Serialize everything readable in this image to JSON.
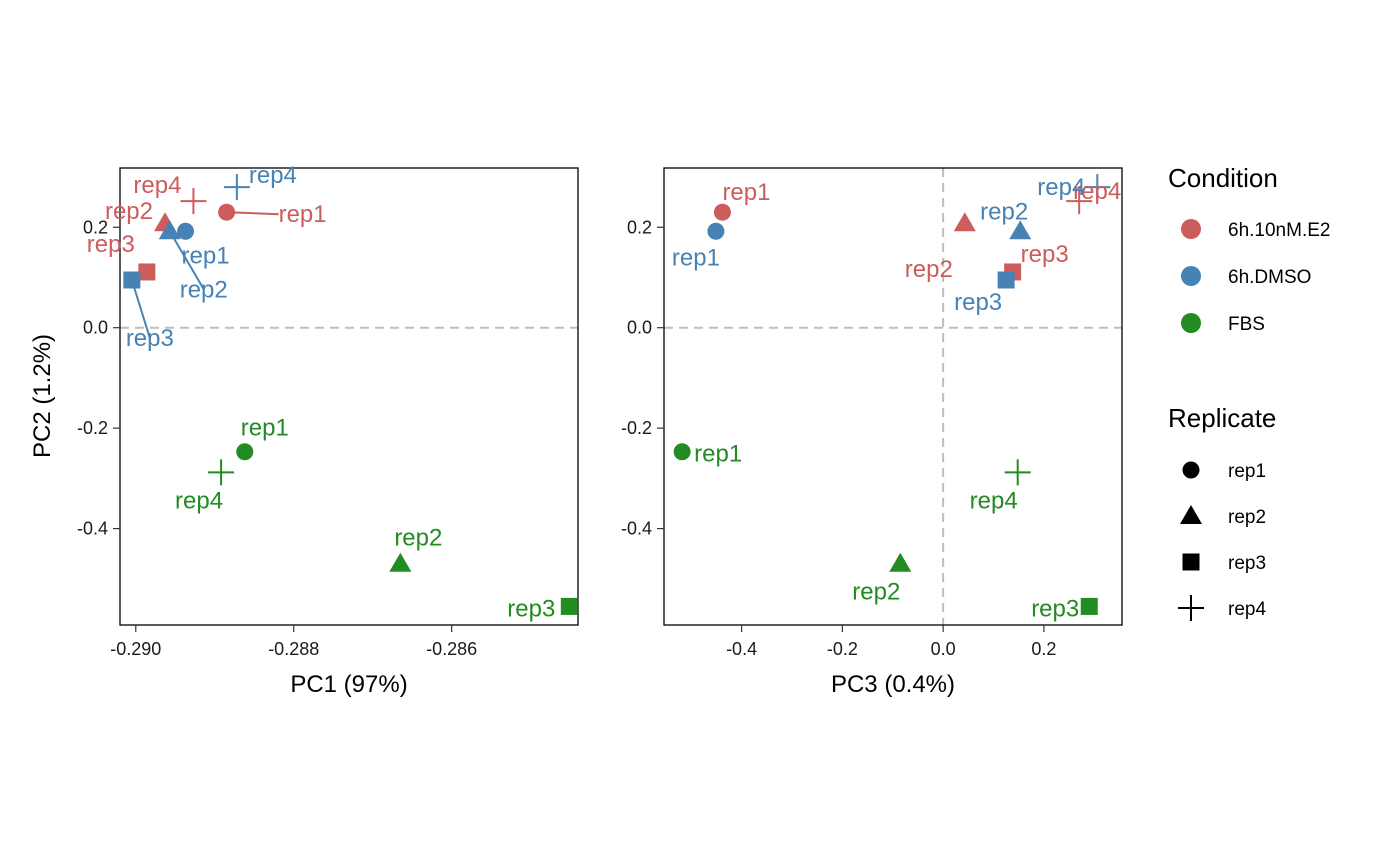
{
  "colors": {
    "6h.10nM.E2": "#CD5C5C",
    "6h.DMSO": "#4682B4",
    "FBS": "#228B22",
    "refline": "#BEBEBE",
    "legend_marker": "#000000"
  },
  "legend": {
    "condition": {
      "title": "Condition",
      "items": [
        {
          "label": "6h.10nM.E2",
          "color": "#CD5C5C"
        },
        {
          "label": "6h.DMSO",
          "color": "#4682B4"
        },
        {
          "label": "FBS",
          "color": "#228B22"
        }
      ]
    },
    "replicate": {
      "title": "Replicate",
      "items": [
        {
          "label": "rep1",
          "shape": "circle"
        },
        {
          "label": "rep2",
          "shape": "triangle"
        },
        {
          "label": "rep3",
          "shape": "square"
        },
        {
          "label": "rep4",
          "shape": "plus"
        }
      ]
    }
  },
  "chart_data": [
    {
      "type": "scatter",
      "xlabel": "PC1 (97%)",
      "ylabel": "PC2 (1.2%)",
      "xlim": [
        -0.2902,
        -0.2844
      ],
      "ylim": [
        -0.592,
        0.318
      ],
      "xticks": [
        -0.29,
        -0.288,
        -0.286
      ],
      "xtick_labels": [
        "-0.290",
        "-0.288",
        "-0.286"
      ],
      "yticks": [
        -0.4,
        -0.2,
        0.0,
        0.2
      ],
      "ytick_labels": [
        "-0.4",
        "-0.2",
        "0.0",
        "0.2"
      ],
      "reference_lines": {
        "h": [
          0
        ]
      },
      "grid": false,
      "points": [
        {
          "condition": "6h.10nM.E2",
          "replicate": "rep1",
          "label": "rep1",
          "x": -0.28885,
          "y": 0.23
        },
        {
          "condition": "6h.10nM.E2",
          "replicate": "rep2",
          "label": "rep2",
          "x": -0.28963,
          "y": 0.208
        },
        {
          "condition": "6h.10nM.E2",
          "replicate": "rep3",
          "label": "rep3",
          "x": -0.28986,
          "y": 0.111
        },
        {
          "condition": "6h.10nM.E2",
          "replicate": "rep4",
          "label": "rep4",
          "x": -0.28927,
          "y": 0.252
        },
        {
          "condition": "6h.DMSO",
          "replicate": "rep1",
          "label": "rep1",
          "x": -0.28937,
          "y": 0.192
        },
        {
          "condition": "6h.DMSO",
          "replicate": "rep2",
          "label": "rep2",
          "x": -0.28957,
          "y": 0.192
        },
        {
          "condition": "6h.DMSO",
          "replicate": "rep3",
          "label": "rep3",
          "x": -0.29005,
          "y": 0.095
        },
        {
          "condition": "6h.DMSO",
          "replicate": "rep4",
          "label": "rep4",
          "x": -0.28872,
          "y": 0.28
        },
        {
          "condition": "FBS",
          "replicate": "rep1",
          "label": "rep1",
          "x": -0.28862,
          "y": -0.247
        },
        {
          "condition": "FBS",
          "replicate": "rep2",
          "label": "rep2",
          "x": -0.28665,
          "y": -0.47
        },
        {
          "condition": "FBS",
          "replicate": "rep3",
          "label": "rep3",
          "x": -0.28451,
          "y": -0.555
        },
        {
          "condition": "FBS",
          "replicate": "rep4",
          "label": "rep4",
          "x": -0.28892,
          "y": -0.288
        }
      ]
    },
    {
      "type": "scatter",
      "xlabel": "PC3 (0.4%)",
      "ylabel": "",
      "xlim": [
        -0.554,
        0.355
      ],
      "ylim": [
        -0.592,
        0.318
      ],
      "xticks": [
        -0.4,
        -0.2,
        0.0,
        0.2
      ],
      "xtick_labels": [
        "-0.4",
        "-0.2",
        "0.0",
        "0.2"
      ],
      "yticks": [
        -0.4,
        -0.2,
        0.0,
        0.2
      ],
      "ytick_labels": [
        "-0.4",
        "-0.2",
        "0.0",
        "0.2"
      ],
      "reference_lines": {
        "h": [
          0
        ],
        "v": [
          0
        ]
      },
      "grid": false,
      "points": [
        {
          "condition": "6h.10nM.E2",
          "replicate": "rep1",
          "label": "rep1",
          "x": -0.438,
          "y": 0.23
        },
        {
          "condition": "6h.10nM.E2",
          "replicate": "rep2",
          "label": "rep2",
          "x": 0.043,
          "y": 0.208
        },
        {
          "condition": "6h.10nM.E2",
          "replicate": "rep3",
          "label": "rep3",
          "x": 0.138,
          "y": 0.111
        },
        {
          "condition": "6h.10nM.E2",
          "replicate": "rep4",
          "label": "rep4",
          "x": 0.27,
          "y": 0.252
        },
        {
          "condition": "6h.DMSO",
          "replicate": "rep1",
          "label": "rep1",
          "x": -0.451,
          "y": 0.192
        },
        {
          "condition": "6h.DMSO",
          "replicate": "rep2",
          "label": "rep2",
          "x": 0.153,
          "y": 0.192
        },
        {
          "condition": "6h.DMSO",
          "replicate": "rep3",
          "label": "rep3",
          "x": 0.125,
          "y": 0.095
        },
        {
          "condition": "6h.DMSO",
          "replicate": "rep4",
          "label": "rep4",
          "x": 0.306,
          "y": 0.28
        },
        {
          "condition": "FBS",
          "replicate": "rep1",
          "label": "rep1",
          "x": -0.518,
          "y": -0.247
        },
        {
          "condition": "FBS",
          "replicate": "rep2",
          "label": "rep2",
          "x": -0.085,
          "y": -0.47
        },
        {
          "condition": "FBS",
          "replicate": "rep3",
          "label": "rep3",
          "x": 0.29,
          "y": -0.555
        },
        {
          "condition": "FBS",
          "replicate": "rep4",
          "label": "rep4",
          "x": 0.148,
          "y": -0.288
        }
      ]
    }
  ]
}
